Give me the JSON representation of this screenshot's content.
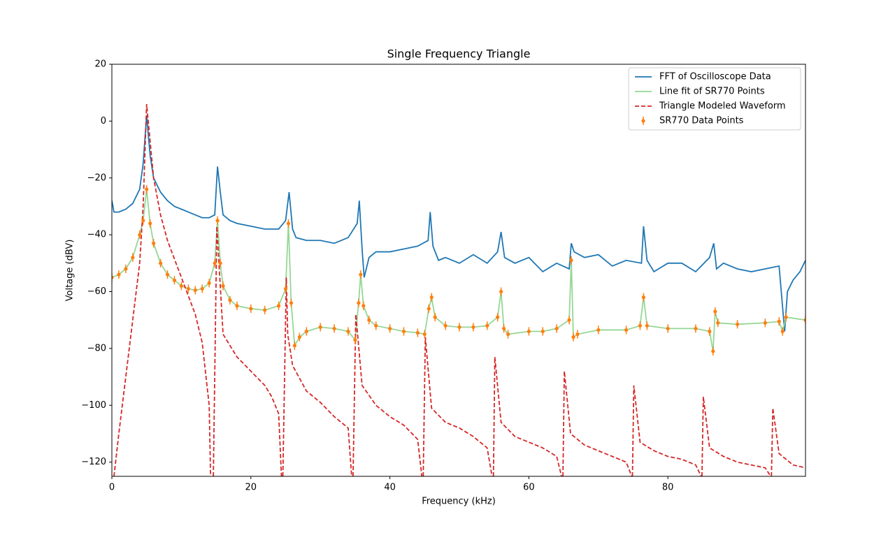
{
  "chart_data": {
    "type": "line",
    "title": "Single Frequency Triangle",
    "x_label": "Frequency (kHz)",
    "y_label": "Voltage (dBV)",
    "xlim": [
      0,
      99.8
    ],
    "ylim": [
      -125,
      20
    ],
    "xticks": [
      0,
      20,
      40,
      60,
      80
    ],
    "yticks": [
      {
        "value": -120,
        "label": "−120"
      },
      {
        "value": -100,
        "label": "−100"
      },
      {
        "value": -80,
        "label": "−80"
      },
      {
        "value": -60,
        "label": "−60"
      },
      {
        "value": -40,
        "label": "−40"
      },
      {
        "value": -20,
        "label": "−20"
      },
      0,
      20
    ],
    "legend": "upper right",
    "grid": false,
    "series": [
      {
        "name": "FFT of Oscilloscope Data",
        "color": "#1f77b4",
        "linestyle": "solid",
        "x": [
          0,
          0.3,
          1,
          2,
          3,
          4,
          4.5,
          5,
          5.5,
          6,
          7,
          8,
          9,
          10,
          11,
          12,
          13,
          14,
          14.8,
          15.2,
          15.6,
          16,
          17,
          18,
          20,
          22,
          24,
          25,
          25.5,
          26,
          26.5,
          28,
          30,
          32,
          34,
          35.3,
          35.6,
          36,
          36.3,
          37,
          38,
          40,
          42,
          44,
          45.5,
          45.8,
          46.2,
          47,
          48,
          50,
          52,
          54,
          55.5,
          56,
          56.5,
          58,
          60,
          62,
          64,
          65.8,
          66.1,
          66.5,
          68,
          70,
          72,
          74,
          76.2,
          76.5,
          77,
          78,
          80,
          82,
          84,
          86,
          86.6,
          87,
          88,
          90,
          92,
          94,
          96,
          96.8,
          97.2,
          98,
          99,
          99.8
        ],
        "values": [
          -28,
          -32,
          -32,
          -31,
          -29,
          -24,
          -15,
          2,
          -12,
          -20,
          -25,
          -28,
          -30,
          -31,
          -32,
          -33,
          -34,
          -34,
          -33,
          -16,
          -25,
          -33,
          -35,
          -36,
          -37,
          -38,
          -38,
          -35,
          -25,
          -38,
          -41,
          -42,
          -42,
          -43,
          -41,
          -36,
          -28,
          -45,
          -55,
          -48,
          -46,
          -46,
          -45,
          -44,
          -42,
          -32,
          -44,
          -49,
          -48,
          -50,
          -47,
          -50,
          -46,
          -39,
          -48,
          -50,
          -48,
          -53,
          -50,
          -52,
          -43,
          -46,
          -48,
          -47,
          -51,
          -49,
          -50,
          -37,
          -49,
          -53,
          -50,
          -50,
          -53,
          -48,
          -43,
          -52,
          -50,
          -52,
          -53,
          -52,
          -51,
          -74,
          -60,
          -56,
          -53,
          -49
        ]
      },
      {
        "name": "Line fit of SR770 Points",
        "color": "#95d795",
        "linestyle": "solid",
        "x": [
          0,
          1,
          2,
          3,
          4,
          4.5,
          5,
          5.5,
          6,
          7,
          8,
          9,
          10,
          11,
          12,
          13,
          14,
          14.8,
          15.2,
          15.6,
          16,
          17,
          18,
          20,
          22,
          24,
          25,
          25.4,
          25.8,
          26.3,
          27,
          28,
          30,
          32,
          34,
          35,
          35.5,
          35.8,
          36.2,
          37,
          38,
          40,
          42,
          44,
          45,
          45.6,
          46,
          46.5,
          48,
          50,
          52,
          54,
          55.5,
          56,
          56.4,
          57,
          60,
          62,
          64,
          65.8,
          66.1,
          66.4,
          67,
          70,
          74,
          76,
          76.5,
          77,
          80,
          84,
          86,
          86.5,
          86.8,
          87.2,
          90,
          94,
          96,
          96.5,
          97,
          99.8
        ],
        "values": [
          -55,
          -54,
          -52,
          -48,
          -40,
          -35,
          -24,
          -36,
          -43,
          -50,
          -54,
          -56,
          -58,
          -59,
          -59.5,
          -59,
          -57,
          -50,
          -35,
          -50,
          -58,
          -63,
          -65,
          -66,
          -66.5,
          -65,
          -59,
          -36,
          -64,
          -79,
          -76,
          -74,
          -72.5,
          -73,
          -74,
          -77,
          -64,
          -54,
          -65,
          -70,
          -72,
          -73,
          -74,
          -74.5,
          -75,
          -66,
          -62,
          -69,
          -72,
          -72.5,
          -72.5,
          -72,
          -69,
          -60,
          -73,
          -75,
          -74,
          -74,
          -73,
          -70,
          -49,
          -76,
          -75,
          -73.5,
          -73.5,
          -72,
          -62,
          -72,
          -73,
          -73,
          -74,
          -81,
          -67,
          -71,
          -71.5,
          -71,
          -70.5,
          -74,
          -69,
          -70
        ]
      },
      {
        "name": "Triangle Modeled Waveform",
        "color": "#d62728",
        "linestyle": "dashed",
        "x": [
          0.3,
          1,
          2,
          3,
          4,
          4.5,
          5,
          6,
          7,
          8,
          10,
          12,
          13,
          14,
          14.2,
          14.5,
          14.6,
          15.1,
          16,
          18,
          20,
          22,
          23,
          24,
          24.4,
          24.5,
          24.6,
          25.1,
          25.3,
          26,
          28,
          30,
          32,
          34,
          34.5,
          34.6,
          34.7,
          35.1,
          36,
          38,
          40,
          42,
          44,
          44.6,
          44.7,
          44.8,
          45.1,
          46,
          48,
          50,
          52,
          54,
          54.7,
          54.8,
          54.9,
          55.1,
          56,
          58,
          60,
          62,
          64,
          64.7,
          64.8,
          64.9,
          65.1,
          66,
          68,
          70,
          72,
          74,
          74.8,
          74.85,
          74.9,
          75.1,
          76,
          78,
          80,
          82,
          84,
          84.8,
          84.85,
          84.9,
          85.1,
          86,
          88,
          90,
          92,
          94,
          94.8,
          94.85,
          94.9,
          95.1,
          96,
          98,
          99.8
        ],
        "values": [
          -125,
          -110,
          -90,
          -70,
          -50,
          -30,
          6,
          -20,
          -33,
          -42,
          -55,
          -68,
          -78,
          -100,
          -125,
          null,
          -125,
          -37,
          -75,
          -83,
          -88,
          -93,
          -97,
          -103,
          -125,
          null,
          -125,
          -55,
          -75,
          -86,
          -95,
          -99,
          -104,
          -108,
          -125,
          null,
          -125,
          -68,
          -93,
          -100,
          -104,
          -107,
          -112,
          -125,
          null,
          -125,
          -76,
          -101,
          -106,
          -108,
          -111,
          -115,
          -125,
          null,
          -125,
          -83,
          -106,
          -111,
          -113,
          -115,
          -118,
          -125,
          null,
          -125,
          -88,
          -110,
          -114,
          -116,
          -118,
          -120,
          -125,
          null,
          -125,
          -93,
          -113,
          -116,
          -118,
          -119,
          -121,
          -125,
          null,
          -125,
          -97,
          -115,
          -118,
          -120,
          -121,
          -122,
          -125,
          null,
          -125,
          -101,
          -117,
          -121,
          -122
        ]
      },
      {
        "name": "SR770 Data Points",
        "color": "#ff7f0e",
        "linestyle": "none",
        "marker": "o",
        "yerr": 1.5,
        "x": [
          0,
          1,
          2,
          3,
          4,
          4.5,
          5,
          5.5,
          6,
          7,
          8,
          9,
          10,
          11,
          12,
          13,
          14,
          14.8,
          15.2,
          15.6,
          16,
          17,
          18,
          20,
          22,
          24,
          25,
          25.4,
          25.8,
          26.3,
          27,
          28,
          30,
          32,
          34,
          35,
          35.5,
          35.8,
          36.2,
          37,
          38,
          40,
          42,
          44,
          45,
          45.6,
          46,
          46.5,
          48,
          50,
          52,
          54,
          55.5,
          56,
          56.4,
          57,
          60,
          62,
          64,
          65.8,
          66.1,
          66.4,
          67,
          70,
          74,
          76,
          76.5,
          77,
          80,
          84,
          86,
          86.5,
          86.8,
          87.2,
          90,
          94,
          96,
          96.5,
          97,
          99.8
        ],
        "values": [
          -55,
          -54,
          -52,
          -48,
          -40,
          -35,
          -24,
          -36,
          -43,
          -50,
          -54,
          -56,
          -58,
          -59,
          -59.5,
          -59,
          -57,
          -50,
          -35,
          -50,
          -58,
          -63,
          -65,
          -66,
          -66.5,
          -65,
          -59,
          -36,
          -64,
          -79,
          -76,
          -74,
          -72.5,
          -73,
          -74,
          -77,
          -64,
          -54,
          -65,
          -70,
          -72,
          -73,
          -74,
          -74.5,
          -75,
          -66,
          -62,
          -69,
          -72,
          -72.5,
          -72.5,
          -72,
          -69,
          -60,
          -73,
          -75,
          -74,
          -74,
          -73,
          -70,
          -49,
          -76,
          -75,
          -73.5,
          -73.5,
          -72,
          -62,
          -72,
          -73,
          -73,
          -74,
          -81,
          -67,
          -71,
          -71.5,
          -71,
          -70.5,
          -74,
          -69,
          -70
        ]
      }
    ]
  }
}
